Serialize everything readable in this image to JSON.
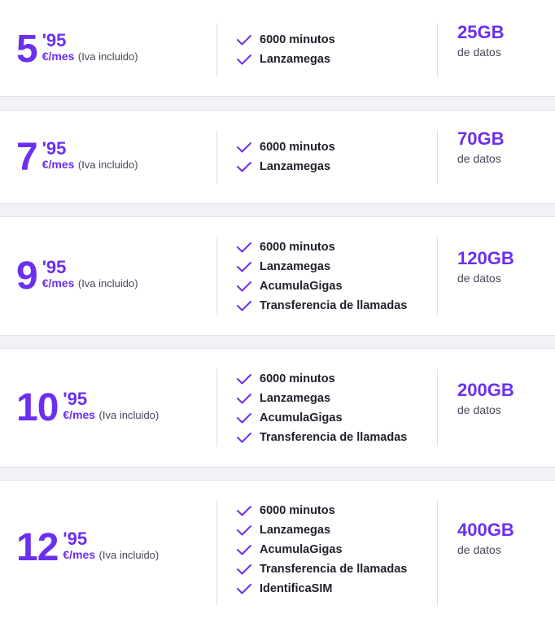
{
  "plans": [
    {
      "price_int": "5",
      "price_dec": "'95",
      "unit": "€/mes",
      "iva": "(Iva incluido)",
      "features": [
        "6000 minutos",
        "Lanzamegas"
      ],
      "data_amount": "25GB",
      "data_label": "de datos"
    },
    {
      "price_int": "7",
      "price_dec": "'95",
      "unit": "€/mes",
      "iva": "(Iva incluido)",
      "features": [
        "6000 minutos",
        "Lanzamegas"
      ],
      "data_amount": "70GB",
      "data_label": "de datos"
    },
    {
      "price_int": "9",
      "price_dec": "'95",
      "unit": "€/mes",
      "iva": "(Iva incluido)",
      "features": [
        "6000 minutos",
        "Lanzamegas",
        "AcumulaGigas",
        "Transferencia de llamadas"
      ],
      "data_amount": "120GB",
      "data_label": "de datos"
    },
    {
      "price_int": "10",
      "price_dec": "'95",
      "unit": "€/mes",
      "iva": "(Iva incluido)",
      "features": [
        "6000 minutos",
        "Lanzamegas",
        "AcumulaGigas",
        "Transferencia de llamadas"
      ],
      "data_amount": "200GB",
      "data_label": "de datos"
    },
    {
      "price_int": "12",
      "price_dec": "'95",
      "unit": "€/mes",
      "iva": "(Iva incluido)",
      "features": [
        "6000 minutos",
        "Lanzamegas",
        "AcumulaGigas",
        "Transferencia de llamadas",
        "IdentificaSIM"
      ],
      "data_amount": "400GB",
      "data_label": "de datos"
    }
  ],
  "icons": {
    "feature": "check-icon"
  },
  "colors": {
    "accent": "#6b2ff0",
    "text": "#22202c",
    "muted": "#4a4658"
  }
}
